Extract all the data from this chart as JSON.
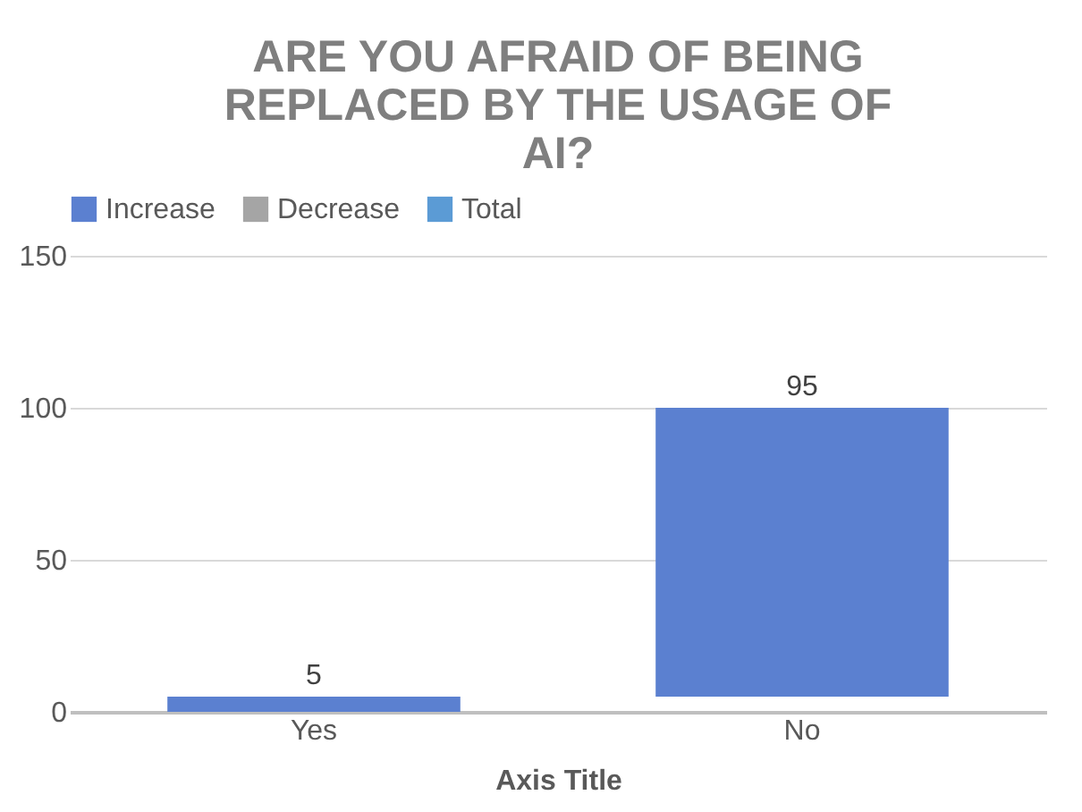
{
  "chart_data": {
    "type": "bar",
    "title": "ARE YOU AFRAID OF BEING REPLACED BY THE USAGE OF AI?",
    "xlabel": "Axis Title",
    "categories": [
      "Yes",
      "No"
    ],
    "series": [
      {
        "name": "Increase",
        "color": "#5b80d0",
        "values": [
          5,
          95
        ],
        "base": [
          0,
          5
        ]
      },
      {
        "name": "Decrease",
        "color": "#a5a5a5",
        "values": [
          null,
          null
        ]
      },
      {
        "name": "Total",
        "color": "#5b9bd5",
        "values": [
          null,
          null
        ]
      }
    ],
    "ylim": [
      0,
      150
    ],
    "yticks": [
      0,
      50,
      100,
      150
    ],
    "grid": "y",
    "legend": "top",
    "data_labels": true
  }
}
